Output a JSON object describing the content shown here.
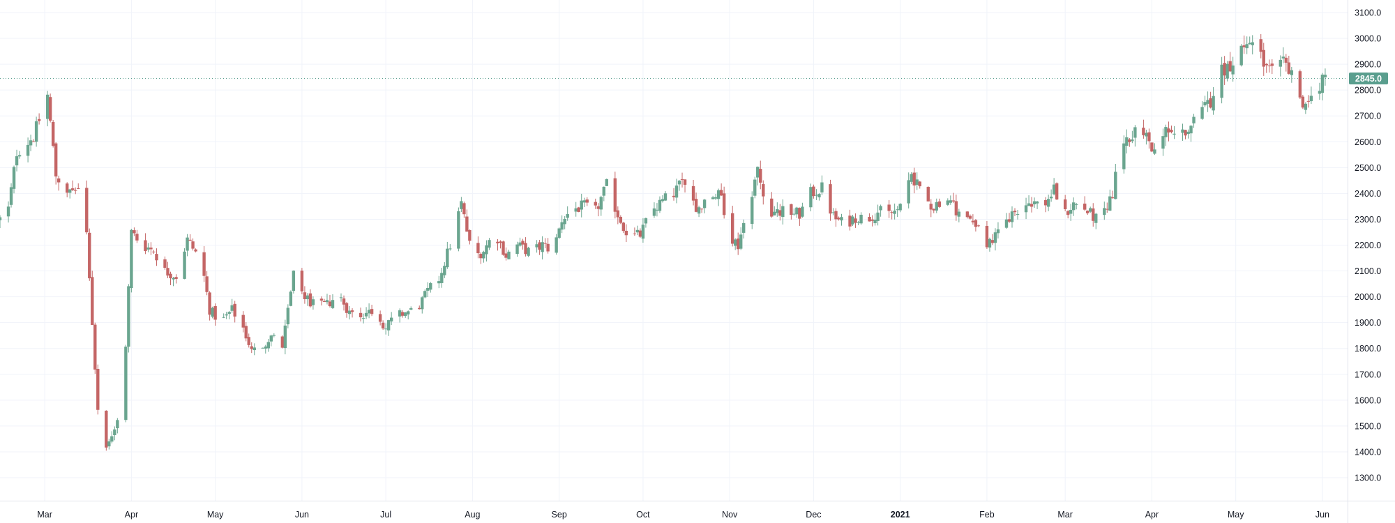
{
  "chart_data": {
    "type": "candlestick",
    "title": "",
    "xlabel": "",
    "ylabel": "",
    "ylim": [
      1240,
      3140
    ],
    "y_ticks": [
      1300,
      1400,
      1500,
      1600,
      1700,
      1800,
      1900,
      2000,
      2100,
      2200,
      2300,
      2400,
      2500,
      2600,
      2700,
      2800,
      2900,
      3000,
      3100
    ],
    "y_tick_labels": [
      "1300.0",
      "1400.0",
      "1500.0",
      "1600.0",
      "1700.0",
      "1800.0",
      "1900.0",
      "2000.0",
      "2100.0",
      "2200.0",
      "2300.0",
      "2400.0",
      "2500.0",
      "2600.0",
      "2700.0",
      "2800.0",
      "2900.0",
      "3000.0",
      "3100.0"
    ],
    "x_tick_labels": [
      "Mar",
      "Apr",
      "May",
      "Jun",
      "Jul",
      "Aug",
      "Sep",
      "Oct",
      "Nov",
      "Dec",
      "2021",
      "Feb",
      "Mar",
      "Apr",
      "May",
      "Jun"
    ],
    "x_tick_dates": [
      "2020-03-01",
      "2020-04-01",
      "2020-05-01",
      "2020-06-01",
      "2020-07-01",
      "2020-08-01",
      "2020-09-01",
      "2020-10-01",
      "2020-11-01",
      "2020-12-01",
      "2021-01-01",
      "2021-02-01",
      "2021-03-01",
      "2021-04-01",
      "2021-05-01",
      "2021-06-01"
    ],
    "x_range": [
      "2020-02-14",
      "2021-06-10"
    ],
    "last_price": 2845.0,
    "last_price_label": "2845.0",
    "grid": true,
    "colors": {
      "up": "#26a69a",
      "up_body": "#6aa58f",
      "down": "#c0504d",
      "down_body": "#c46565",
      "wick": "#5d606b",
      "grid": "#f0f3fa",
      "price_line": "#5a9e8e",
      "price_badge": "#5a9e8e"
    },
    "waypoints": [
      [
        "2020-02-14",
        2300
      ],
      [
        "2020-02-17",
        2340
      ],
      [
        "2020-02-20",
        2560
      ],
      [
        "2020-02-26",
        2620
      ],
      [
        "2020-03-02",
        2780
      ],
      [
        "2020-03-05",
        2470
      ],
      [
        "2020-03-10",
        2400
      ],
      [
        "2020-03-13",
        2420
      ],
      [
        "2020-03-16",
        2230
      ],
      [
        "2020-03-18",
        1900
      ],
      [
        "2020-03-20",
        1560
      ],
      [
        "2020-03-23",
        1430
      ],
      [
        "2020-03-26",
        1480
      ],
      [
        "2020-03-29",
        1600
      ],
      [
        "2020-04-01",
        2250
      ],
      [
        "2020-04-05",
        2200
      ],
      [
        "2020-04-09",
        2180
      ],
      [
        "2020-04-13",
        2100
      ],
      [
        "2020-04-17",
        2080
      ],
      [
        "2020-04-21",
        2220
      ],
      [
        "2020-04-26",
        2140
      ],
      [
        "2020-04-29",
        1950
      ],
      [
        "2020-05-03",
        1900
      ],
      [
        "2020-05-07",
        1950
      ],
      [
        "2020-05-11",
        1880
      ],
      [
        "2020-05-14",
        1790
      ],
      [
        "2020-05-17",
        1800
      ],
      [
        "2020-05-21",
        1850
      ],
      [
        "2020-05-25",
        1810
      ],
      [
        "2020-05-29",
        2080
      ],
      [
        "2020-06-02",
        2000
      ],
      [
        "2020-06-06",
        1960
      ],
      [
        "2020-06-10",
        1970
      ],
      [
        "2020-06-14",
        2010
      ],
      [
        "2020-06-18",
        1940
      ],
      [
        "2020-06-22",
        1930
      ],
      [
        "2020-06-27",
        1950
      ],
      [
        "2020-07-01",
        1880
      ],
      [
        "2020-07-04",
        1920
      ],
      [
        "2020-07-08",
        1940
      ],
      [
        "2020-07-12",
        1950
      ],
      [
        "2020-07-16",
        2020
      ],
      [
        "2020-07-20",
        2070
      ],
      [
        "2020-07-24",
        2200
      ],
      [
        "2020-07-28",
        2360
      ],
      [
        "2020-08-01",
        2150
      ],
      [
        "2020-08-05",
        2180
      ],
      [
        "2020-08-09",
        2250
      ],
      [
        "2020-08-13",
        2160
      ],
      [
        "2020-08-17",
        2200
      ],
      [
        "2020-08-22",
        2170
      ],
      [
        "2020-08-26",
        2200
      ],
      [
        "2020-08-30",
        2180
      ],
      [
        "2020-09-02",
        2300
      ],
      [
        "2020-09-06",
        2340
      ],
      [
        "2020-09-10",
        2350
      ],
      [
        "2020-09-14",
        2330
      ],
      [
        "2020-09-18",
        2430
      ],
      [
        "2020-09-22",
        2320
      ],
      [
        "2020-09-26",
        2230
      ],
      [
        "2020-09-30",
        2240
      ],
      [
        "2020-10-04",
        2330
      ],
      [
        "2020-10-08",
        2370
      ],
      [
        "2020-10-12",
        2400
      ],
      [
        "2020-10-16",
        2460
      ],
      [
        "2020-10-20",
        2340
      ],
      [
        "2020-10-25",
        2400
      ],
      [
        "2020-10-29",
        2390
      ],
      [
        "2020-11-01",
        2240
      ],
      [
        "2020-11-04",
        2200
      ],
      [
        "2020-11-08",
        2370
      ],
      [
        "2020-11-11",
        2490
      ],
      [
        "2020-11-14",
        2340
      ],
      [
        "2020-11-18",
        2330
      ],
      [
        "2020-11-22",
        2330
      ],
      [
        "2020-11-26",
        2320
      ],
      [
        "2020-11-30",
        2400
      ],
      [
        "2020-12-04",
        2420
      ],
      [
        "2020-12-08",
        2310
      ],
      [
        "2020-12-12",
        2280
      ],
      [
        "2020-12-16",
        2310
      ],
      [
        "2020-12-20",
        2300
      ],
      [
        "2020-12-24",
        2330
      ],
      [
        "2020-12-28",
        2320
      ],
      [
        "2021-01-01",
        2340
      ],
      [
        "2021-01-05",
        2480
      ],
      [
        "2021-01-09",
        2380
      ],
      [
        "2021-01-13",
        2350
      ],
      [
        "2021-01-17",
        2390
      ],
      [
        "2021-01-21",
        2340
      ],
      [
        "2021-01-25",
        2300
      ],
      [
        "2021-01-29",
        2280
      ],
      [
        "2021-02-01",
        2200
      ],
      [
        "2021-02-05",
        2240
      ],
      [
        "2021-02-09",
        2310
      ],
      [
        "2021-02-13",
        2350
      ],
      [
        "2021-02-17",
        2370
      ],
      [
        "2021-02-21",
        2350
      ],
      [
        "2021-02-25",
        2410
      ],
      [
        "2021-03-01",
        2320
      ],
      [
        "2021-03-04",
        2360
      ],
      [
        "2021-03-08",
        2340
      ],
      [
        "2021-03-12",
        2300
      ],
      [
        "2021-03-16",
        2330
      ],
      [
        "2021-03-18",
        2400
      ],
      [
        "2021-03-21",
        2600
      ],
      [
        "2021-03-25",
        2630
      ],
      [
        "2021-03-29",
        2640
      ],
      [
        "2021-04-02",
        2560
      ],
      [
        "2021-04-06",
        2640
      ],
      [
        "2021-04-10",
        2620
      ],
      [
        "2021-04-14",
        2650
      ],
      [
        "2021-04-18",
        2700
      ],
      [
        "2021-04-22",
        2760
      ],
      [
        "2021-04-25",
        2870
      ],
      [
        "2021-04-29",
        2900
      ],
      [
        "2021-05-03",
        2960
      ],
      [
        "2021-05-06",
        2990
      ],
      [
        "2021-05-09",
        2950
      ],
      [
        "2021-05-12",
        2880
      ],
      [
        "2021-05-15",
        2860
      ],
      [
        "2021-05-18",
        2900
      ],
      [
        "2021-05-21",
        2880
      ],
      [
        "2021-05-24",
        2760
      ],
      [
        "2021-05-27",
        2750
      ],
      [
        "2021-05-31",
        2820
      ],
      [
        "2021-06-02",
        2845
      ]
    ]
  }
}
